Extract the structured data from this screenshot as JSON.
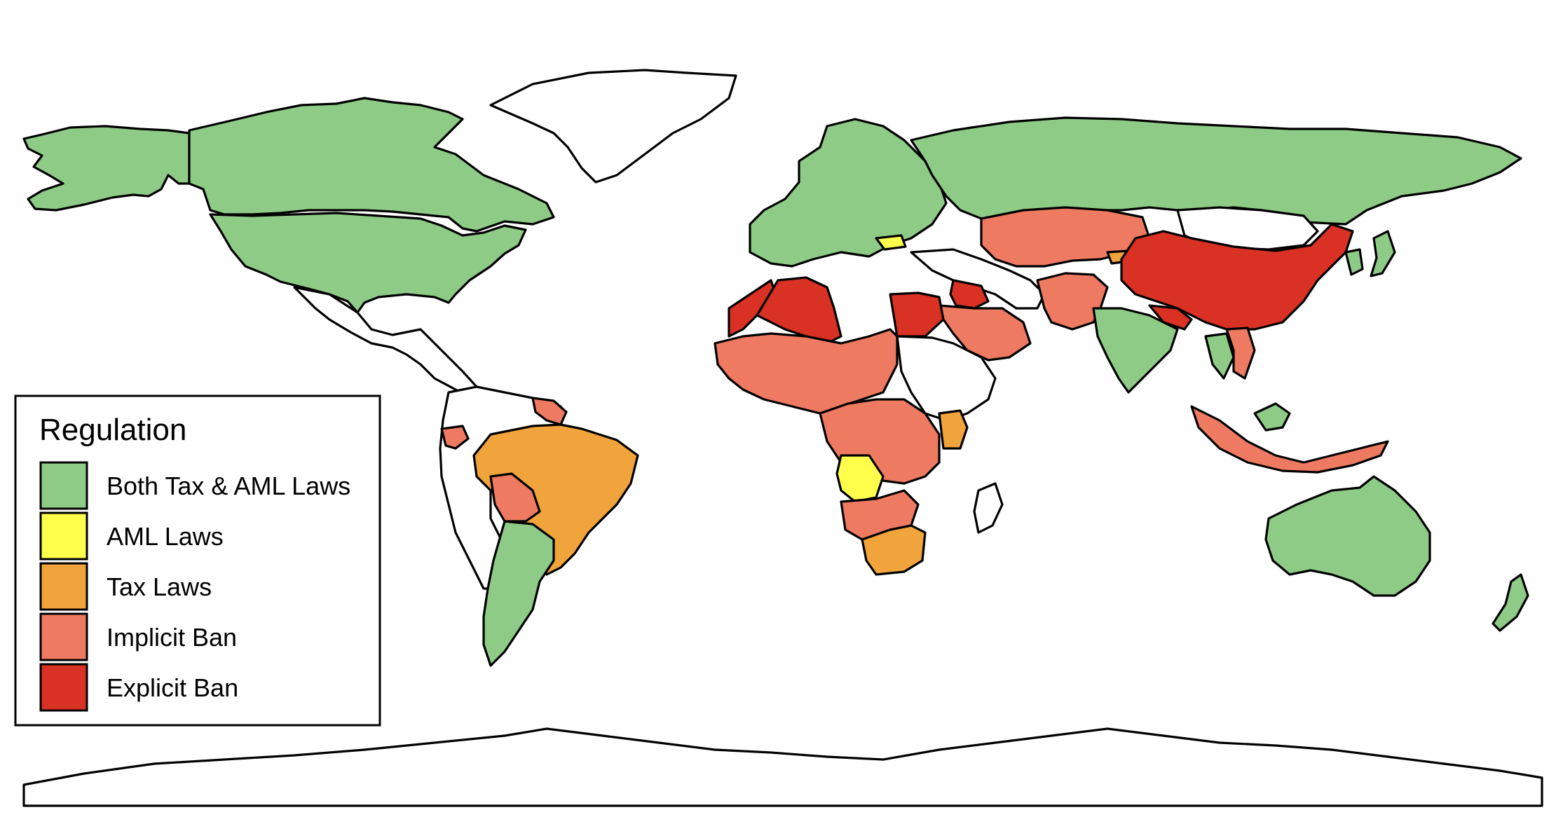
{
  "legend": {
    "title": "Regulation",
    "items": [
      {
        "key": "both",
        "label": "Both Tax & AML Laws",
        "color": "#8ecb86"
      },
      {
        "key": "aml",
        "label": "AML Laws",
        "color": "#ffff4c"
      },
      {
        "key": "tax",
        "label": "Tax Laws",
        "color": "#f1a43c"
      },
      {
        "key": "implicit",
        "label": "Implicit Ban",
        "color": "#ef7a62"
      },
      {
        "key": "explicit",
        "label": "Explicit Ban",
        "color": "#d93124"
      }
    ]
  },
  "map": {
    "unclassified_color": "#ffffff",
    "border_color": "#000000",
    "regions": [
      {
        "name": "Canada",
        "category": "both"
      },
      {
        "name": "USA",
        "category": "both"
      },
      {
        "name": "Alaska",
        "category": "both"
      },
      {
        "name": "Greenland",
        "category": "none"
      },
      {
        "name": "Central America & Mexico",
        "category": "none"
      },
      {
        "name": "Brazil",
        "category": "tax"
      },
      {
        "name": "Bolivia",
        "category": "implicit"
      },
      {
        "name": "Ecuador",
        "category": "implicit"
      },
      {
        "name": "Guyana / Suriname",
        "category": "implicit"
      },
      {
        "name": "Argentina / Chile",
        "category": "both"
      },
      {
        "name": "Rest of South America",
        "category": "none"
      },
      {
        "name": "Europe",
        "category": "both"
      },
      {
        "name": "Russia",
        "category": "both"
      },
      {
        "name": "Bulgaria",
        "category": "aml"
      },
      {
        "name": "Kazakhstan & Central Asia",
        "category": "implicit"
      },
      {
        "name": "Kyrgyzstan",
        "category": "tax"
      },
      {
        "name": "Iran / Turkey region",
        "category": "none"
      },
      {
        "name": "Algeria",
        "category": "explicit"
      },
      {
        "name": "Morocco",
        "category": "explicit"
      },
      {
        "name": "Egypt",
        "category": "explicit"
      },
      {
        "name": "Iraq / Jordan",
        "category": "explicit"
      },
      {
        "name": "Saudi Arabia & Gulf",
        "category": "implicit"
      },
      {
        "name": "Sahel & West Africa",
        "category": "implicit"
      },
      {
        "name": "Central Africa",
        "category": "implicit"
      },
      {
        "name": "Sudan / Horn of Africa",
        "category": "none"
      },
      {
        "name": "Kenya",
        "category": "tax"
      },
      {
        "name": "Angola",
        "category": "aml"
      },
      {
        "name": "Namibia / Botswana",
        "category": "implicit"
      },
      {
        "name": "South Africa",
        "category": "tax"
      },
      {
        "name": "Madagascar",
        "category": "none"
      },
      {
        "name": "China",
        "category": "explicit"
      },
      {
        "name": "Mongolia",
        "category": "none"
      },
      {
        "name": "India",
        "category": "both"
      },
      {
        "name": "Pakistan / Afghanistan",
        "category": "implicit"
      },
      {
        "name": "Nepal / Bangladesh",
        "category": "explicit"
      },
      {
        "name": "Japan",
        "category": "both"
      },
      {
        "name": "Korea",
        "category": "both"
      },
      {
        "name": "Thailand",
        "category": "both"
      },
      {
        "name": "Vietnam / Laos",
        "category": "implicit"
      },
      {
        "name": "Indonesia",
        "category": "implicit"
      },
      {
        "name": "Borneo (Malaysia)",
        "category": "both"
      },
      {
        "name": "Australia",
        "category": "both"
      },
      {
        "name": "New Zealand",
        "category": "both"
      },
      {
        "name": "Antarctica",
        "category": "none"
      }
    ]
  }
}
